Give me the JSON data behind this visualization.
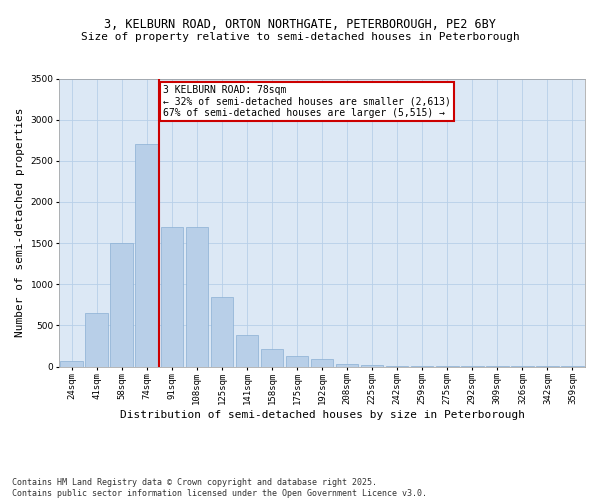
{
  "title1": "3, KELBURN ROAD, ORTON NORTHGATE, PETERBOROUGH, PE2 6BY",
  "title2": "Size of property relative to semi-detached houses in Peterborough",
  "xlabel": "Distribution of semi-detached houses by size in Peterborough",
  "ylabel": "Number of semi-detached properties",
  "footnote1": "Contains HM Land Registry data © Crown copyright and database right 2025.",
  "footnote2": "Contains public sector information licensed under the Open Government Licence v3.0.",
  "annotation_title": "3 KELBURN ROAD: 78sqm",
  "annotation_line1": "← 32% of semi-detached houses are smaller (2,613)",
  "annotation_line2": "67% of semi-detached houses are larger (5,515) →",
  "categories": [
    "24sqm",
    "41sqm",
    "58sqm",
    "74sqm",
    "91sqm",
    "108sqm",
    "125sqm",
    "141sqm",
    "158sqm",
    "175sqm",
    "192sqm",
    "208sqm",
    "225sqm",
    "242sqm",
    "259sqm",
    "275sqm",
    "292sqm",
    "309sqm",
    "326sqm",
    "342sqm",
    "359sqm"
  ],
  "values": [
    65,
    650,
    1500,
    2700,
    1700,
    1700,
    850,
    380,
    220,
    130,
    90,
    30,
    15,
    10,
    10,
    5,
    5,
    2,
    2,
    2,
    2
  ],
  "bar_color": "#b8cfe8",
  "bar_edge_color": "#8aafd4",
  "vline_color": "#cc0000",
  "vline_x_index": 3.5,
  "ylim": [
    0,
    3500
  ],
  "yticks": [
    0,
    500,
    1000,
    1500,
    2000,
    2500,
    3000,
    3500
  ],
  "annotation_box_color": "#cc0000",
  "plot_bg_color": "#dce8f5",
  "background_color": "#ffffff",
  "grid_color": "#b8cfe8",
  "title_fontsize": 8.5,
  "subtitle_fontsize": 8,
  "axis_label_fontsize": 8,
  "tick_fontsize": 6.5,
  "annotation_fontsize": 7,
  "footnote_fontsize": 6
}
